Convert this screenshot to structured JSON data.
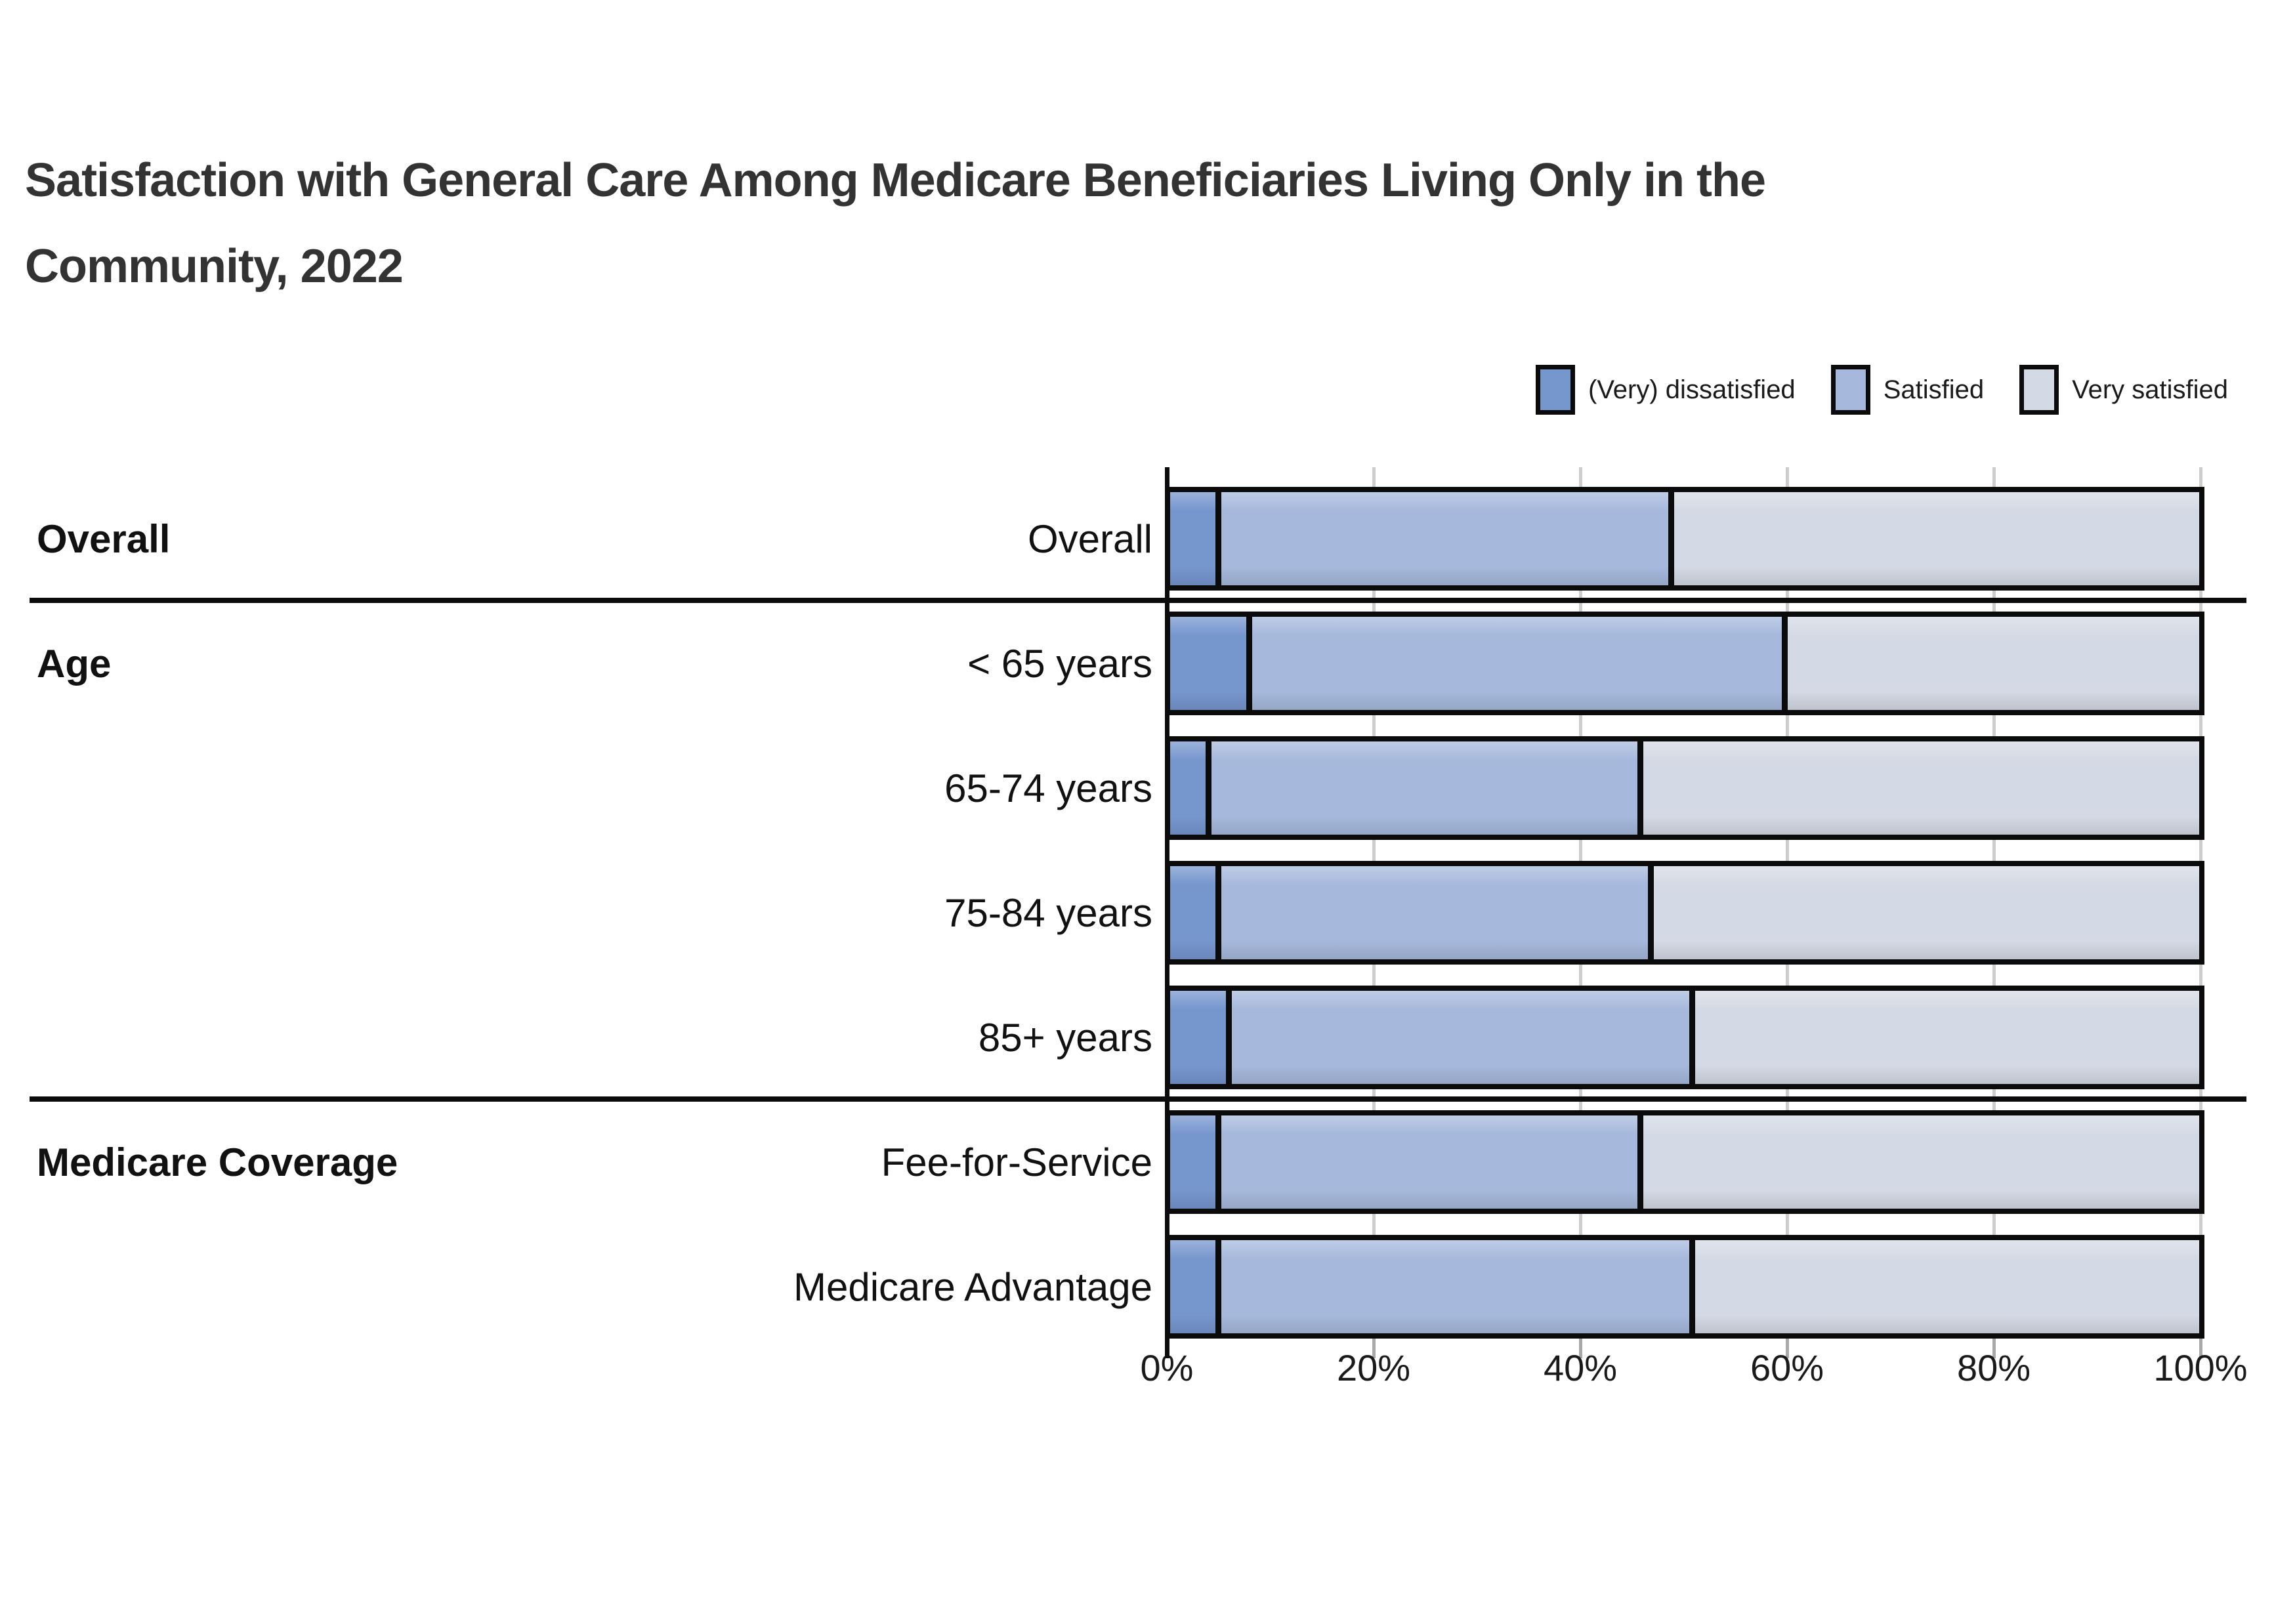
{
  "title": {
    "line1": "Satisfaction with General Care Among Medicare Beneficiaries Living Only in the",
    "line2": "Community, 2022"
  },
  "legend": [
    {
      "label": "(Very) dissatisfied",
      "color": "#7696CE"
    },
    {
      "label": "Satisfied",
      "color": "#A6B9DC"
    },
    {
      "label": "Very satisfied",
      "color": "#D4DAE5"
    }
  ],
  "colors": {
    "dissatisfied": "#7696CE",
    "satisfied": "#A6B9DC",
    "very_satisfied": "#D4DAE5",
    "bar_border": "#0b0b0b",
    "gridline": "#cdcdcd",
    "title_text": "#333333"
  },
  "chart_data": {
    "type": "bar",
    "stacked": true,
    "orientation": "horizontal",
    "title": "Satisfaction with General Care Among Medicare Beneficiaries Living Only in the Community, 2022",
    "series_names": [
      "(Very) dissatisfied",
      "Satisfied",
      "Very satisfied"
    ],
    "x_axis": {
      "min": 0,
      "max": 100,
      "tick_labels": [
        "0%",
        "20%",
        "40%",
        "60%",
        "80%",
        "100%"
      ],
      "grid": true
    },
    "rows": [
      {
        "group": "Overall",
        "category": "Overall",
        "values": [
          5,
          44,
          51
        ],
        "divider_after": true
      },
      {
        "group": "Age",
        "category": "< 65 years",
        "values": [
          8,
          52,
          40
        ],
        "divider_after": false
      },
      {
        "group": null,
        "category": "65-74 years",
        "values": [
          4,
          42,
          54
        ],
        "divider_after": false
      },
      {
        "group": null,
        "category": "75-84 years",
        "values": [
          5,
          42,
          53
        ],
        "divider_after": false
      },
      {
        "group": null,
        "category": "85+ years",
        "values": [
          6,
          45,
          49
        ],
        "divider_after": true
      },
      {
        "group": "Medicare Coverage",
        "category": "Fee-for-Service",
        "values": [
          5,
          41,
          54
        ],
        "divider_after": false
      },
      {
        "group": null,
        "category": "Medicare Advantage",
        "values": [
          5,
          46,
          49
        ],
        "divider_after": false
      }
    ]
  }
}
